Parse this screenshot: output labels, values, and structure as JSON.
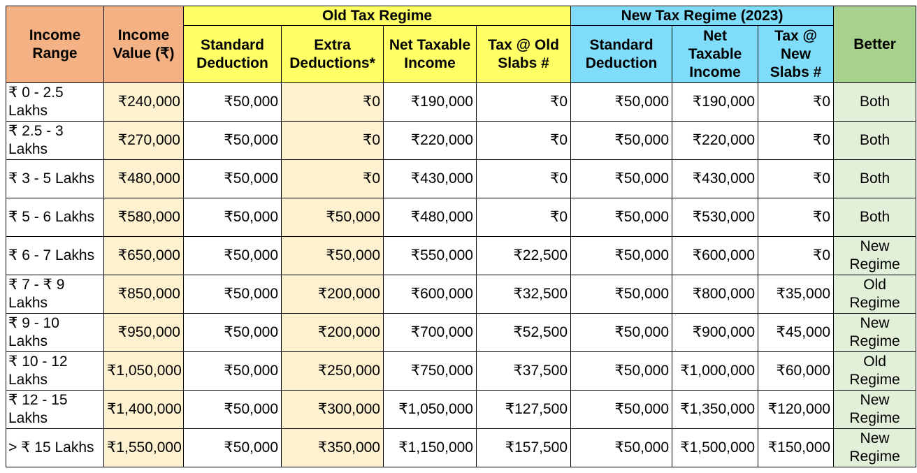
{
  "headers": {
    "income_range": "Income Range",
    "income_value": "Income Value (₹)",
    "old_regime": "Old Tax Regime",
    "new_regime": "New Tax Regime (2023)",
    "better": "Better",
    "old_cols": [
      "Standard Deduction",
      "Extra Deductions*",
      "Net Taxable Income",
      "Tax @ Old Slabs #"
    ],
    "new_cols": [
      "Standard Deduction",
      "Net Taxable Income",
      "Tax @ New Slabs #"
    ]
  },
  "colors": {
    "orange": "#f4b183",
    "yellow": "#ffff66",
    "blue": "#7fdcfb",
    "green": "#a9d18e",
    "cream": "#fdf1cf",
    "light_green": "#e2efd9"
  },
  "rows": [
    {
      "range": "₹ 0 - 2.5 Lakhs",
      "value": "₹240,000",
      "old_std": "₹50,000",
      "extra": "₹0",
      "old_net": "₹190,000",
      "old_tax": "₹0",
      "new_std": "₹50,000",
      "new_net": "₹190,000",
      "new_tax": "₹0",
      "better": "Both"
    },
    {
      "range": "₹ 2.5 - 3 Lakhs",
      "value": "₹270,000",
      "old_std": "₹50,000",
      "extra": "₹0",
      "old_net": "₹220,000",
      "old_tax": "₹0",
      "new_std": "₹50,000",
      "new_net": "₹220,000",
      "new_tax": "₹0",
      "better": "Both"
    },
    {
      "range": "₹ 3 - 5 Lakhs",
      "value": "₹480,000",
      "old_std": "₹50,000",
      "extra": "₹0",
      "old_net": "₹430,000",
      "old_tax": "₹0",
      "new_std": "₹50,000",
      "new_net": "₹430,000",
      "new_tax": "₹0",
      "better": "Both"
    },
    {
      "range": "₹ 5 - 6 Lakhs",
      "value": "₹580,000",
      "old_std": "₹50,000",
      "extra": "₹50,000",
      "old_net": "₹480,000",
      "old_tax": "₹0",
      "new_std": "₹50,000",
      "new_net": "₹530,000",
      "new_tax": "₹0",
      "better": "Both"
    },
    {
      "range": "₹ 6 - 7 Lakhs",
      "value": "₹650,000",
      "old_std": "₹50,000",
      "extra": "₹50,000",
      "old_net": "₹550,000",
      "old_tax": "₹22,500",
      "new_std": "₹50,000",
      "new_net": "₹600,000",
      "new_tax": "₹0",
      "better": "New Regime"
    },
    {
      "range": "₹ 7 - ₹ 9 Lakhs",
      "value": "₹850,000",
      "old_std": "₹50,000",
      "extra": "₹200,000",
      "old_net": "₹600,000",
      "old_tax": "₹32,500",
      "new_std": "₹50,000",
      "new_net": "₹800,000",
      "new_tax": "₹35,000",
      "better": "Old Regime"
    },
    {
      "range": "₹ 9 - 10 Lakhs",
      "value": "₹950,000",
      "old_std": "₹50,000",
      "extra": "₹200,000",
      "old_net": "₹700,000",
      "old_tax": "₹52,500",
      "new_std": "₹50,000",
      "new_net": "₹900,000",
      "new_tax": "₹45,000",
      "better": "New Regime"
    },
    {
      "range": "₹ 10 - 12 Lakhs",
      "value": "₹1,050,000",
      "old_std": "₹50,000",
      "extra": "₹250,000",
      "old_net": "₹750,000",
      "old_tax": "₹37,500",
      "new_std": "₹50,000",
      "new_net": "₹1,000,000",
      "new_tax": "₹60,000",
      "better": "Old Regime"
    },
    {
      "range": "₹ 12 - 15 Lakhs",
      "value": "₹1,400,000",
      "old_std": "₹50,000",
      "extra": "₹300,000",
      "old_net": "₹1,050,000",
      "old_tax": "₹127,500",
      "new_std": "₹50,000",
      "new_net": "₹1,350,000",
      "new_tax": "₹120,000",
      "better": "New Regime"
    },
    {
      "range": "> ₹ 15 Lakhs",
      "value": "₹1,550,000",
      "old_std": "₹50,000",
      "extra": "₹350,000",
      "old_net": "₹1,150,000",
      "old_tax": "₹157,500",
      "new_std": "₹50,000",
      "new_net": "₹1,500,000",
      "new_tax": "₹150,000",
      "better": "New Regime"
    }
  ]
}
